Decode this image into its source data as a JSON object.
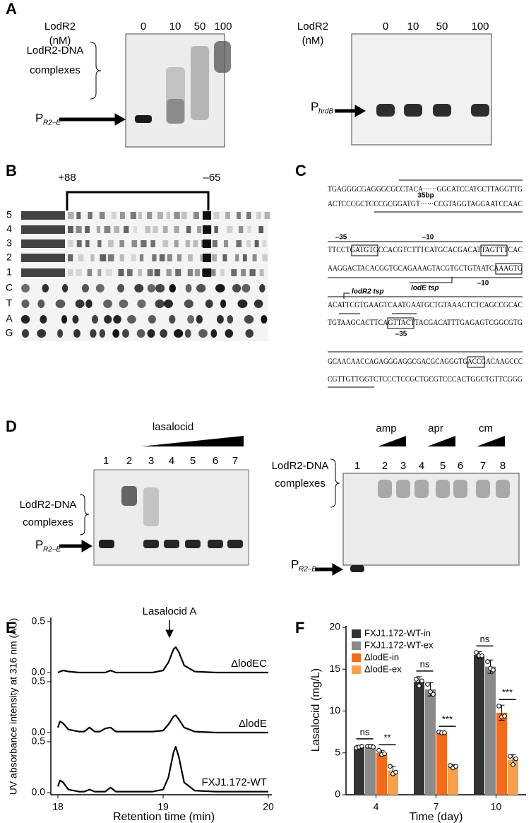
{
  "panel_labels": [
    "A",
    "B",
    "C",
    "D",
    "E",
    "F"
  ],
  "panel_a": {
    "left": {
      "protein": "LodR2",
      "unit": "(nM)",
      "lanes": [
        "0",
        "10",
        "50",
        "100"
      ],
      "complex_label": [
        "LodR2-DNA",
        "complexes"
      ],
      "probe": {
        "letter": "P",
        "subscript": "R2–E"
      }
    },
    "right": {
      "protein": "LodR2",
      "unit": "(nM)",
      "lanes": [
        "0",
        "10",
        "50",
        "100"
      ],
      "probe": {
        "letter": "P",
        "subscript": "hrdB"
      }
    }
  },
  "panel_b": {
    "range_labels": [
      "+88",
      "–65"
    ],
    "lanes": [
      "5",
      "4",
      "3",
      "2",
      "1",
      "C",
      "T",
      "A",
      "G"
    ]
  },
  "panel_c": {
    "sequence": [
      "TGAGGGCGAGGGCGCCTACA······GGCATCCATCCTTAGGTTG",
      "ACTCCCGCTCCCGCGGATGT······CCGTAGGTAGGAATCCAAC",
      "TTCCTGATGTGCCACGTCTTTCATGCACGACATTAGTTTCAC",
      "AAGGACTACACGGTGCAGAAAGTACGTGCTGTAATCAAAGTG",
      "ACATTCGTGAAGTCAATGAATGCTGTAAACTCTCAGCCGCAC",
      "TGTAAGCACTTCAGTTACTTACGACATTTGAGAGTCGGCGTG",
      "GCAACAACCAGAGGGAGGCGACGCAGGGTGACCGACAAGCCC",
      "CGTTGTTGGTCTCCCTCCGCTGCGTCCCACTGGCTGTTCGGG"
    ],
    "annotations": {
      "gap": "35bp",
      "lodR2_minus35": "–35",
      "lodR2_minus10": "–10",
      "lodR2_tsp": "lodR2 tsp",
      "lodE_tsp": "lodE tsp",
      "lodE_minus10": "–10",
      "lodE_minus35": "–35"
    }
  },
  "panel_d": {
    "left": {
      "compound": "lasalocid",
      "lanes": [
        "1",
        "2",
        "3",
        "4",
        "5",
        "6",
        "7"
      ],
      "complex_label": [
        "LodR2-DNA",
        "complexes"
      ],
      "probe": {
        "letter": "P",
        "subscript": "R2–E"
      }
    },
    "right": {
      "compounds": [
        "amp",
        "apr",
        "cm"
      ],
      "lanes": [
        "1",
        "2",
        "3",
        "4",
        "5",
        "6",
        "7",
        "8"
      ],
      "complex_label": [
        "LodR2-DNA",
        "complexes"
      ],
      "probe": {
        "letter": "P",
        "subscript": "R2–E"
      }
    }
  },
  "chart_data": [
    {
      "type": "line",
      "annotation": "Lasalocid A",
      "xlabel": "Retention time (min)",
      "ylabel": "UV absorbance intensity at 316 nm (AU)",
      "x": [
        18.0,
        18.02,
        18.05,
        18.1,
        18.2,
        18.25,
        18.3,
        18.35,
        18.4,
        18.45,
        18.5,
        18.55,
        18.65,
        18.9,
        19.0,
        19.05,
        19.1,
        19.12,
        19.15,
        19.2,
        19.3,
        19.5,
        20.0
      ],
      "xlim": [
        18,
        20
      ],
      "xticks": [
        18,
        19,
        20
      ],
      "ylim": [
        0,
        0.5
      ],
      "yticks": [
        {
          "value": 0,
          "label": "0.0"
        },
        {
          "value": 0.5,
          "label": "0.5"
        }
      ],
      "series": [
        {
          "name": "ΔlodEC",
          "color": "#000000",
          "values": [
            0.0,
            0.01,
            0.02,
            0.01,
            0.0,
            0.0,
            0.0,
            0.0,
            0.0,
            0.0,
            0.02,
            0.0,
            0.0,
            0.0,
            0.02,
            0.1,
            0.23,
            0.25,
            0.2,
            0.07,
            0.01,
            0.0,
            0.0
          ]
        },
        {
          "name": "ΔlodE",
          "color": "#000000",
          "values": [
            0.05,
            0.11,
            0.09,
            0.03,
            0.01,
            0.01,
            0.05,
            0.01,
            0.01,
            0.04,
            0.05,
            0.01,
            0.01,
            0.01,
            0.02,
            0.08,
            0.16,
            0.17,
            0.13,
            0.05,
            0.01,
            0.0,
            0.0
          ]
        },
        {
          "name": "FXJ1.172-WT",
          "color": "#000000",
          "values": [
            0.06,
            0.12,
            0.1,
            0.03,
            0.01,
            0.01,
            0.03,
            0.01,
            0.01,
            0.01,
            0.05,
            0.01,
            0.01,
            0.01,
            0.03,
            0.15,
            0.4,
            0.45,
            0.35,
            0.1,
            0.02,
            0.01,
            0.01
          ]
        }
      ]
    },
    {
      "type": "bar",
      "xlabel": "Time (day)",
      "ylabel": "Lasalocid (mg/L)",
      "categories": [
        "4",
        "7",
        "10"
      ],
      "ylim": [
        0,
        20
      ],
      "yticks": [
        0,
        5,
        10,
        15,
        20
      ],
      "legend": "top-left",
      "series": [
        {
          "name": "FXJ1.172-WT-in",
          "color": "#333333",
          "values": [
            5.7,
            13.5,
            16.7
          ],
          "errors": [
            0.2,
            0.6,
            0.4
          ],
          "points": [
            [
              5.6,
              5.7,
              5.8
            ],
            [
              13.8,
              13.0,
              13.6
            ],
            [
              17.0,
              16.6,
              16.6
            ]
          ]
        },
        {
          "name": "FXJ1.172-WT-ex",
          "color": "#8a8a8a",
          "values": [
            5.8,
            12.6,
            15.3
          ],
          "errors": [
            0.2,
            0.8,
            0.8
          ],
          "points": [
            [
              5.8,
              5.8,
              5.7
            ],
            [
              13.2,
              12.3,
              12.0
            ],
            [
              15.9,
              15.1,
              14.9
            ]
          ]
        },
        {
          "name": "ΔlodE-in",
          "color": "#f26a1b",
          "values": [
            5.0,
            7.4,
            9.8
          ],
          "errors": [
            0.3,
            0.1,
            0.9
          ],
          "points": [
            [
              5.3,
              4.8,
              4.9
            ],
            [
              7.5,
              7.4,
              7.4
            ],
            [
              10.6,
              9.3,
              9.4
            ]
          ]
        },
        {
          "name": "ΔlodE-ex",
          "color": "#f6a04d",
          "values": [
            2.9,
            3.4,
            4.2
          ],
          "errors": [
            0.5,
            0.2,
            0.6
          ],
          "points": [
            [
              3.4,
              2.5,
              2.7
            ],
            [
              3.5,
              3.2,
              3.4
            ],
            [
              4.6,
              3.6,
              4.3
            ]
          ]
        }
      ],
      "significance": [
        [
          "ns",
          "**"
        ],
        [
          "ns",
          "***"
        ],
        [
          "ns",
          "***"
        ]
      ]
    }
  ]
}
